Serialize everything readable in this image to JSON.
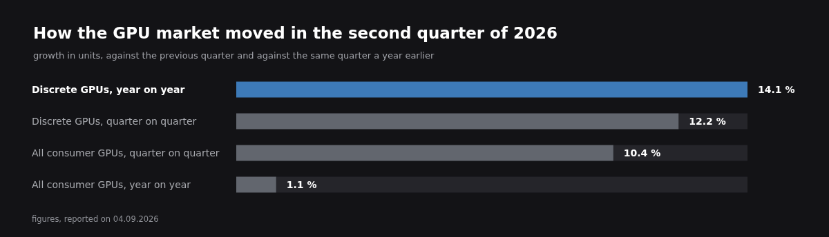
{
  "chart_data": {
    "type": "bar",
    "orientation": "horizontal",
    "title": "How the GPU market moved in the second quarter of 2026",
    "subtitle": "growth in units, against the previous quarter and against the same quarter a year earlier",
    "categories": [
      "Discrete GPUs, year on year",
      "Discrete GPUs, quarter on quarter",
      "All consumer GPUs, quarter on quarter",
      "All consumer GPUs, year on year"
    ],
    "values": [
      14.1,
      12.2,
      10.4,
      1.1
    ],
    "value_labels": [
      "14.1 %",
      "12.2 %",
      "10.4 %",
      "1.1 %"
    ],
    "colors": [
      "#3d7ab8",
      "#62666e",
      "#62666e",
      "#62666e"
    ],
    "annotations": [
      "figures, reported on 04.09.2026"
    ]
  }
}
